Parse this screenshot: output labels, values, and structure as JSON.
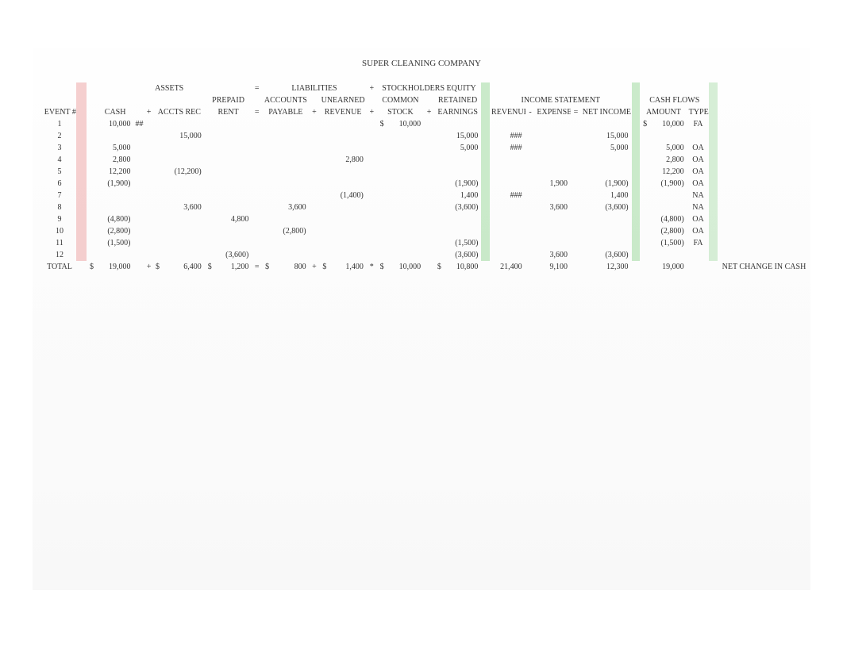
{
  "title": "SUPER CLEANING COMPANY",
  "section_headers": {
    "assets": "ASSETS",
    "liabilities": "LIABILITIES",
    "stockholders_equity": "STOCKHOLDERS EQUITY",
    "income_statement": "INCOME STATEMENT",
    "cash_flows": "CASH FLOWS"
  },
  "col_headers": {
    "event": "EVENT #",
    "cash": "CASH",
    "accts_rec": "ACCTS REC",
    "prepaid_rent_1": "PREPAID",
    "prepaid_rent_2": "RENT",
    "accounts_payable_1": "ACCOUNTS",
    "accounts_payable_2": "PAYABLE",
    "unearned_revenue_1": "UNEARNED",
    "unearned_revenue_2": "REVENUE",
    "common_stock_1": "COMMON",
    "common_stock_2": "STOCK",
    "retained_earnings_1": "RETAINED",
    "retained_earnings_2": "EARNINGS",
    "revenues": "REVENUES",
    "expenses": "EXPENSES",
    "net_income": "NET INCOME",
    "amount": "AMOUNT",
    "type": "TYPE"
  },
  "ops": {
    "plus": "+",
    "minus": "-",
    "eq": "=",
    "star": "*"
  },
  "events": [
    "1",
    "2",
    "3",
    "4",
    "5",
    "6",
    "7",
    "8",
    "9",
    "10",
    "11",
    "12"
  ],
  "rows": [
    {
      "cash_cur": "",
      "cash": "10,000",
      "cash_note": "##",
      "ar": "",
      "pr": "",
      "ap": "",
      "ur": "",
      "cs_cur": "$",
      "cs": "10,000",
      "re": "",
      "rev": "",
      "exp": "",
      "ni": "",
      "cf_cur": "$",
      "cf": "10,000",
      "type": "FA"
    },
    {
      "cash": "",
      "ar": "15,000",
      "pr": "",
      "ap": "",
      "ur": "",
      "cs": "",
      "re": "15,000",
      "rev": "###",
      "exp": "",
      "ni": "15,000",
      "cf": "",
      "type": ""
    },
    {
      "cash": "5,000",
      "ar": "",
      "pr": "",
      "ap": "",
      "ur": "",
      "cs": "",
      "re": "5,000",
      "rev": "###",
      "exp": "",
      "ni": "5,000",
      "cf": "5,000",
      "type": "OA"
    },
    {
      "cash": "2,800",
      "ar": "",
      "pr": "",
      "ap": "",
      "ur": "2,800",
      "cs": "",
      "re": "",
      "rev": "",
      "exp": "",
      "ni": "",
      "cf": "2,800",
      "type": "OA"
    },
    {
      "cash": "12,200",
      "ar": "(12,200)",
      "pr": "",
      "ap": "",
      "ur": "",
      "cs": "",
      "re": "",
      "rev": "",
      "exp": "",
      "ni": "",
      "cf": "12,200",
      "type": "OA"
    },
    {
      "cash": "(1,900)",
      "ar": "",
      "pr": "",
      "ap": "",
      "ur": "",
      "cs": "",
      "re": "(1,900)",
      "rev": "",
      "exp": "1,900",
      "ni": "(1,900)",
      "cf": "(1,900)",
      "type": "OA"
    },
    {
      "cash": "",
      "ar": "",
      "pr": "",
      "ap": "",
      "ur": "(1,400)",
      "cs": "",
      "re": "1,400",
      "rev": "###",
      "exp": "",
      "ni": "1,400",
      "cf": "",
      "type": "NA"
    },
    {
      "cash": "",
      "ar": "3,600",
      "pr": "",
      "ap": "3,600",
      "ur": "",
      "cs": "",
      "re": "(3,600)",
      "rev": "",
      "exp": "3,600",
      "ni": "(3,600)",
      "cf": "",
      "type": "NA"
    },
    {
      "cash": "(4,800)",
      "ar": "",
      "pr": "4,800",
      "ap": "",
      "ur": "",
      "cs": "",
      "re": "",
      "rev": "",
      "exp": "",
      "ni": "",
      "cf": "(4,800)",
      "type": "OA"
    },
    {
      "cash": "(2,800)",
      "ar": "",
      "pr": "",
      "ap": "(2,800)",
      "ur": "",
      "cs": "",
      "re": "",
      "rev": "",
      "exp": "",
      "ni": "",
      "cf": "(2,800)",
      "type": "OA"
    },
    {
      "cash": "(1,500)",
      "ar": "",
      "pr": "",
      "ap": "",
      "ur": "",
      "cs": "",
      "re": "(1,500)",
      "rev": "",
      "exp": "",
      "ni": "",
      "cf": "(1,500)",
      "type": "FA"
    },
    {
      "cash": "",
      "ar": "",
      "pr": "(3,600)",
      "ap": "",
      "ur": "",
      "cs": "",
      "re": "(3,600)",
      "rev": "",
      "exp": "3,600",
      "ni": "(3,600)",
      "cf": "",
      "type": ""
    }
  ],
  "total": {
    "label": "TOTAL",
    "cash_cur": "$",
    "cash": "19,000",
    "ar_cur": "$",
    "ar": "6,400",
    "pr_cur": "$",
    "pr": "1,200",
    "ap_cur": "$",
    "ap": "800",
    "ur_cur": "$",
    "ur": "1,400",
    "cs_cur": "$",
    "cs": "10,000",
    "re_cur": "$",
    "re": "10,800",
    "rev": "21,400",
    "exp": "9,100",
    "ni": "12,300",
    "cf": "19,000",
    "net_change": "NET CHANGE IN CASH"
  },
  "colors": {
    "hl_red": "rgba(230,120,120,0.35)",
    "hl_green": "rgba(140,210,140,0.45)"
  }
}
